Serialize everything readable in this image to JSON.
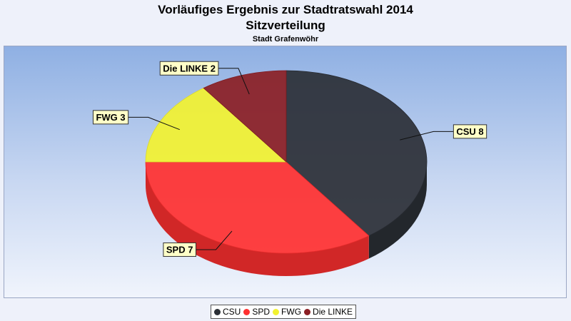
{
  "chart_data": {
    "type": "pie",
    "title": "Vorläufiges Ergebnis zur Stadtratswahl 2014",
    "subtitle": "Sitzverteilung",
    "subsubtitle": "Stadt Grafenwöhr",
    "categories": [
      "CSU",
      "SPD",
      "FWG",
      "Die LINKE"
    ],
    "values": [
      8,
      7,
      3,
      2
    ],
    "labels": [
      "CSU 8",
      "SPD 7",
      "FWG 3",
      "Die LINKE 2"
    ],
    "colors": [
      "#2b2f36",
      "#ff3030",
      "#f2f230",
      "#8b1e24"
    ],
    "legend": "bottom-center"
  }
}
